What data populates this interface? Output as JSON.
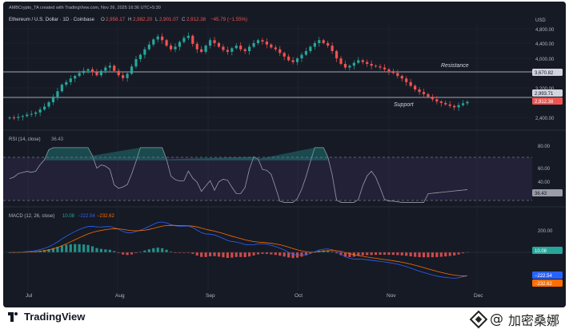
{
  "header": {
    "credit": "AMBCrypto_TA created with TradingView.com, Nov 26, 2025 16:36 UTC+5:30",
    "symbol_line": "Ethereum / U.S. Dollar · 1D · Coinbase",
    "ohlc": {
      "o_label": "O",
      "o": "2,958.17",
      "h_label": "H",
      "h": "2,982.20",
      "l_label": "L",
      "l": "2,901.07",
      "c_label": "C",
      "c": "2,912.38",
      "change": "−45.79 (−1.55%)"
    }
  },
  "price_axis": {
    "currency": "USD",
    "ticks": [
      "4,800.00",
      "4,400.00",
      "4,000.00",
      "3,200.00",
      "2,400.00"
    ]
  },
  "levels": {
    "resistance": {
      "label": "Resistance",
      "value": 3670.82,
      "tag": "3,670.82"
    },
    "support": {
      "label": "Support",
      "value": 2993.71,
      "tag": "2,993.71"
    },
    "last_price_tag": "2,912.38"
  },
  "rsi": {
    "title": "RSI (14, close)",
    "value": "36.43",
    "ticks": [
      "80.00",
      "60.00",
      "40.00"
    ],
    "upper_band": 70,
    "lower_band": 30
  },
  "macd": {
    "title": "MACD (12, 26, close)",
    "hist_value": "10.08",
    "macd_value": "−222.54",
    "signal_value": "−232.62",
    "ticks": [
      "200.00"
    ],
    "tag_macd": "−222.54",
    "tag_signal": "−232.62",
    "tag_hist": "10.08"
  },
  "time_axis": [
    "Jul",
    "Aug",
    "Sep",
    "Oct",
    "Nov",
    "Dec"
  ],
  "footer": {
    "logo_text": "TradingView",
    "watermark": "加密桑娜"
  },
  "colors": {
    "bg": "#161a25",
    "up": "#26a69a",
    "down": "#ef5350",
    "grid": "#232734",
    "text": "#b2b5be",
    "rsi_line": "#9a9ca6",
    "macd_line": "#2962ff",
    "signal_line": "#ff6d00"
  },
  "chart_data": [
    {
      "type": "candlestick",
      "title": "Ethereum / U.S. Dollar · 1D · Coinbase",
      "x_labels": [
        "Jul",
        "Aug",
        "Sep",
        "Oct",
        "Nov",
        "Dec"
      ],
      "ylim": [
        2200,
        5000
      ],
      "close_path": [
        2480,
        2470,
        2500,
        2520,
        2560,
        2580,
        2620,
        2700,
        2780,
        2900,
        3050,
        3200,
        3380,
        3450,
        3550,
        3620,
        3700,
        3760,
        3800,
        3720,
        3640,
        3760,
        3850,
        3900,
        3760,
        3640,
        3560,
        3680,
        3880,
        4080,
        4200,
        4350,
        4480,
        4620,
        4700,
        4600,
        4450,
        4350,
        4420,
        4550,
        4660,
        4720,
        4500,
        4350,
        4280,
        4450,
        4600,
        4520,
        4420,
        4330,
        4280,
        4380,
        4450,
        4350,
        4300,
        4420,
        4520,
        4600,
        4560,
        4480,
        4400,
        4350,
        4250,
        4150,
        4050,
        4000,
        4100,
        4200,
        4300,
        4420,
        4520,
        4600,
        4520,
        4450,
        4300,
        4100,
        3950,
        3850,
        3900,
        3980,
        4050,
        4000,
        3950,
        3900,
        3880,
        3850,
        3800,
        3750,
        3700,
        3620,
        3550,
        3450,
        3350,
        3250,
        3180,
        3120,
        3050,
        2980,
        2920,
        2880,
        2840,
        2800,
        2760,
        2820,
        2870,
        2912
      ],
      "resistance": 3670.82,
      "support": 2993.71
    },
    {
      "type": "line",
      "title": "RSI (14, close)",
      "ylim": [
        20,
        90
      ],
      "bands": [
        30,
        70
      ],
      "last": 36.43
    },
    {
      "type": "line",
      "title": "MACD (12, 26, close)",
      "series": [
        {
          "name": "MACD",
          "last": -222.54
        },
        {
          "name": "Signal",
          "last": -232.62
        },
        {
          "name": "Histogram",
          "last": 10.08
        }
      ]
    }
  ]
}
